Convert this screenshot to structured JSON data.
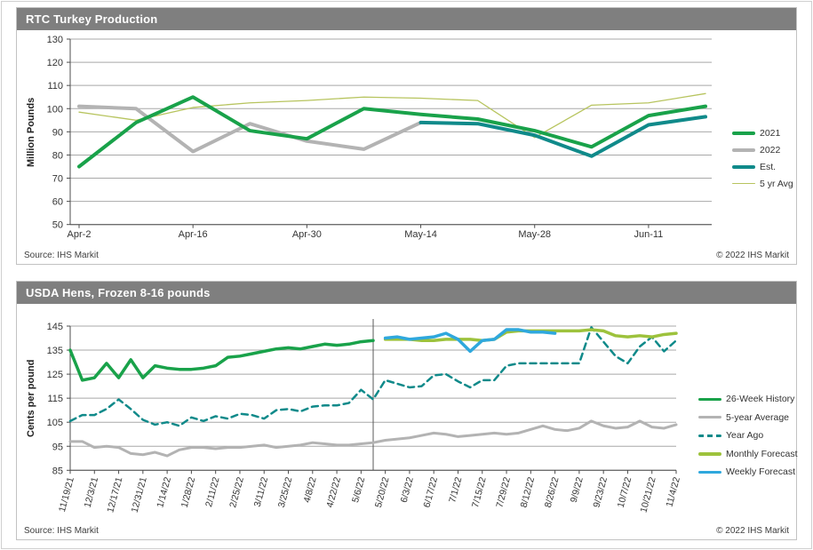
{
  "chart_data": [
    {
      "type": "line",
      "title": "RTC Turkey Production",
      "ylabel": "Million Pounds",
      "source": "Source: IHS Markit",
      "copyright": "© 2022 IHS Markit",
      "ylim": [
        50,
        130
      ],
      "yticks": [
        50,
        60,
        70,
        80,
        90,
        100,
        110,
        120,
        130
      ],
      "grid": true,
      "legend_position": "right",
      "divider_index": null,
      "x_dates": [
        "Apr-2",
        "Apr-9",
        "Apr-16",
        "Apr-23",
        "Apr-30",
        "May-7",
        "May-14",
        "May-21",
        "May-28",
        "Jun-4",
        "Jun-11",
        "Jun-18"
      ],
      "xticks": [
        {
          "i": 0,
          "label": "Apr-2"
        },
        {
          "i": 2,
          "label": "Apr-16"
        },
        {
          "i": 4,
          "label": "Apr-30"
        },
        {
          "i": 6,
          "label": "May-14"
        },
        {
          "i": 8,
          "label": "May-28"
        },
        {
          "i": 10,
          "label": "Jun-11"
        }
      ],
      "series": [
        {
          "name": "2021",
          "color": "#19a24a",
          "width": 4,
          "dash": null,
          "values": [
            75,
            94,
            105,
            90.5,
            87,
            100,
            97.5,
            95.5,
            90.5,
            83.5,
            97,
            101
          ]
        },
        {
          "name": "2022",
          "color": "#b3b3b3",
          "width": 4,
          "dash": null,
          "values": [
            101,
            100,
            81.5,
            93.5,
            86,
            82.5,
            94,
            null,
            null,
            null,
            null,
            null
          ]
        },
        {
          "name": "Est.",
          "color": "#108a8a",
          "width": 4,
          "dash": null,
          "values": [
            null,
            null,
            null,
            null,
            null,
            null,
            94,
            93.5,
            88.5,
            79.5,
            93,
            96.5
          ]
        },
        {
          "name": "5 yr Avg",
          "color": "#b7c45e",
          "width": 1.3,
          "dash": null,
          "values": [
            98.5,
            95,
            100.5,
            102.5,
            103.5,
            105,
            104.5,
            103.5,
            87.5,
            101.5,
            102.5,
            106.5
          ]
        }
      ]
    },
    {
      "type": "line",
      "title": "USDA Hens, Frozen 8-16 pounds",
      "ylabel": "Cents per pound",
      "source": "Source: IHS Markit",
      "copyright": "© 2022 IHS Markit",
      "ylim": [
        85,
        145
      ],
      "yticks": [
        85,
        95,
        105,
        115,
        125,
        135,
        145
      ],
      "grid": true,
      "legend_position": "right",
      "divider_index": 25,
      "x_dates": [
        "11/19/21",
        "11/26/21",
        "12/3/21",
        "12/10/21",
        "12/17/21",
        "12/24/21",
        "12/31/21",
        "1/7/22",
        "1/14/22",
        "1/21/22",
        "1/28/22",
        "2/4/22",
        "2/11/22",
        "2/18/22",
        "2/25/22",
        "3/4/22",
        "3/11/22",
        "3/18/22",
        "3/25/22",
        "4/1/22",
        "4/8/22",
        "4/15/22",
        "4/22/22",
        "4/29/22",
        "5/6/22",
        "5/13/22",
        "5/20/22",
        "5/27/22",
        "6/3/22",
        "6/10/22",
        "6/17/22",
        "6/24/22",
        "7/1/22",
        "7/8/22",
        "7/15/22",
        "7/22/22",
        "7/29/22",
        "8/5/22",
        "8/12/22",
        "8/19/22",
        "8/26/22",
        "9/2/22",
        "9/9/22",
        "9/16/22",
        "9/23/22",
        "9/30/22",
        "10/7/22",
        "10/14/22",
        "10/21/22",
        "10/28/22",
        "11/4/22"
      ],
      "xticks": [
        {
          "i": 0,
          "label": "11/19/21"
        },
        {
          "i": 2,
          "label": "12/3/21"
        },
        {
          "i": 4,
          "label": "12/17/21"
        },
        {
          "i": 6,
          "label": "12/31/21"
        },
        {
          "i": 8,
          "label": "1/14/22"
        },
        {
          "i": 10,
          "label": "1/28/22"
        },
        {
          "i": 12,
          "label": "2/11/22"
        },
        {
          "i": 14,
          "label": "2/25/22"
        },
        {
          "i": 16,
          "label": "3/11/22"
        },
        {
          "i": 18,
          "label": "3/25/22"
        },
        {
          "i": 20,
          "label": "4/8/22"
        },
        {
          "i": 22,
          "label": "4/22/22"
        },
        {
          "i": 24,
          "label": "5/6/22"
        },
        {
          "i": 26,
          "label": "5/20/22"
        },
        {
          "i": 28,
          "label": "6/3/22"
        },
        {
          "i": 30,
          "label": "6/17/22"
        },
        {
          "i": 32,
          "label": "7/1/22"
        },
        {
          "i": 34,
          "label": "7/15/22"
        },
        {
          "i": 36,
          "label": "7/29/22"
        },
        {
          "i": 38,
          "label": "8/12/22"
        },
        {
          "i": 40,
          "label": "8/26/22"
        },
        {
          "i": 42,
          "label": "9/9/22"
        },
        {
          "i": 44,
          "label": "9/23/22"
        },
        {
          "i": 46,
          "label": "10/7/22"
        },
        {
          "i": 48,
          "label": "10/21/22"
        },
        {
          "i": 50,
          "label": "11/4/22"
        }
      ],
      "series": [
        {
          "name": "26-Week History",
          "color": "#19a24a",
          "width": 3.5,
          "dash": null,
          "values": [
            135,
            122.5,
            123.5,
            129.5,
            123.5,
            131,
            123.5,
            128.5,
            127.5,
            127,
            127,
            127.5,
            128.5,
            132,
            132.5,
            133.5,
            134.5,
            135.5,
            136,
            135.5,
            136.5,
            137.5,
            137,
            137.5,
            138.5,
            139,
            null,
            null,
            null,
            null,
            null,
            null,
            null,
            null,
            null,
            null,
            null,
            null,
            null,
            null,
            null,
            null,
            null,
            null,
            null,
            null,
            null,
            null,
            null,
            null,
            null
          ]
        },
        {
          "name": "5-year Average",
          "color": "#b3b3b3",
          "width": 3,
          "dash": null,
          "values": [
            97,
            97,
            94.5,
            95,
            94.5,
            92,
            91.5,
            92.5,
            91,
            93.5,
            94.5,
            94.5,
            94,
            94.5,
            94.5,
            95,
            95.5,
            94.5,
            95,
            95.5,
            96.5,
            96,
            95.5,
            95.5,
            96,
            96.5,
            97.5,
            98,
            98.5,
            99.5,
            100.5,
            100,
            99,
            99.5,
            100,
            100.5,
            100,
            100.5,
            102,
            103.5,
            102,
            101.5,
            102.5,
            105.5,
            103.5,
            102.5,
            103,
            105.5,
            103,
            102.5,
            104
          ]
        },
        {
          "name": "Year Ago",
          "color": "#108a8a",
          "width": 2.5,
          "dash": "7 5",
          "values": [
            105.5,
            108,
            108,
            110.5,
            114.5,
            110.5,
            106,
            104,
            105,
            103.5,
            107,
            105.5,
            107.5,
            106.5,
            108.5,
            108,
            106.5,
            110,
            110.5,
            109.5,
            111.5,
            112,
            112,
            113,
            118.5,
            114.5,
            122.5,
            121,
            119.5,
            120,
            124.5,
            125,
            122,
            119.5,
            122.5,
            122.5,
            128.5,
            129.5,
            129.5,
            129.5,
            129.5,
            129.5,
            129.5,
            144.5,
            138.5,
            132.5,
            129.5,
            136.5,
            140.5,
            134.5,
            139
          ]
        },
        {
          "name": "Monthly Forecast",
          "color": "#9dc23c",
          "width": 3.5,
          "dash": null,
          "values": [
            null,
            null,
            null,
            null,
            null,
            null,
            null,
            null,
            null,
            null,
            null,
            null,
            null,
            null,
            null,
            null,
            null,
            null,
            null,
            null,
            null,
            null,
            null,
            null,
            null,
            null,
            139.5,
            139.5,
            139.5,
            139,
            139,
            139.5,
            139.5,
            139.5,
            139,
            139.5,
            142.5,
            143,
            143,
            143,
            143,
            143,
            143,
            143.5,
            143,
            141,
            140.5,
            141,
            140.5,
            141.5,
            142
          ]
        },
        {
          "name": "Weekly Forecast",
          "color": "#2fa8dd",
          "width": 3.5,
          "dash": null,
          "values": [
            null,
            null,
            null,
            null,
            null,
            null,
            null,
            null,
            null,
            null,
            null,
            null,
            null,
            null,
            null,
            null,
            null,
            null,
            null,
            null,
            null,
            null,
            null,
            null,
            null,
            null,
            140,
            140.5,
            139.5,
            140,
            140.5,
            142,
            139.5,
            134.5,
            139,
            139.5,
            143.5,
            143.5,
            142.5,
            142.5,
            142,
            null,
            null,
            null,
            null,
            null,
            null,
            null,
            null,
            null,
            null
          ]
        }
      ]
    }
  ]
}
